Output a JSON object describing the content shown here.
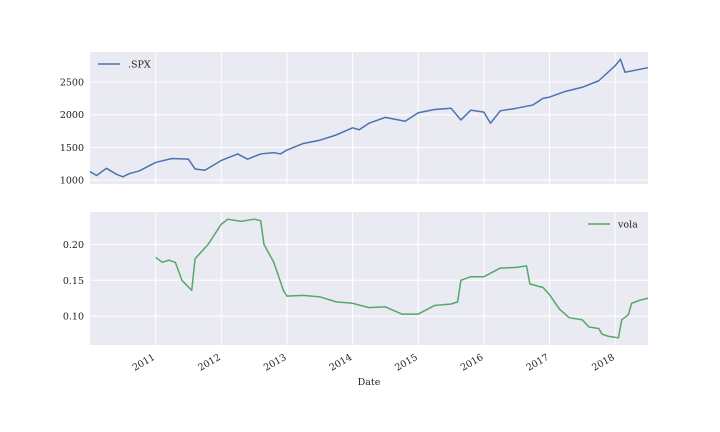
{
  "chart_data": [
    {
      "type": "line",
      "xlim": [
        2010.0,
        2018.5
      ],
      "xticks": [
        2011,
        2012,
        2013,
        2014,
        2015,
        2016,
        2017,
        2018
      ],
      "ylim": [
        940,
        2960
      ],
      "yticks": [
        1000,
        1500,
        2000,
        2500
      ],
      "grid": true,
      "legend": "upper left",
      "series": [
        {
          "name": ".SPX",
          "color": "#4c72b0",
          "x": [
            2010.0,
            2010.1,
            2010.25,
            2010.4,
            2010.5,
            2010.6,
            2010.75,
            2011.0,
            2011.25,
            2011.5,
            2011.6,
            2011.75,
            2012.0,
            2012.25,
            2012.4,
            2012.6,
            2012.8,
            2012.9,
            2013.0,
            2013.25,
            2013.5,
            2013.75,
            2014.0,
            2014.1,
            2014.25,
            2014.5,
            2014.8,
            2015.0,
            2015.25,
            2015.5,
            2015.65,
            2015.8,
            2016.0,
            2016.1,
            2016.25,
            2016.5,
            2016.75,
            2016.9,
            2017.0,
            2017.25,
            2017.5,
            2017.75,
            2018.0,
            2018.08,
            2018.15,
            2018.3,
            2018.5
          ],
          "values": [
            1130,
            1070,
            1180,
            1090,
            1050,
            1100,
            1140,
            1270,
            1330,
            1320,
            1170,
            1150,
            1300,
            1400,
            1320,
            1400,
            1420,
            1400,
            1460,
            1560,
            1610,
            1690,
            1800,
            1770,
            1870,
            1960,
            1900,
            2030,
            2080,
            2100,
            1920,
            2070,
            2040,
            1870,
            2060,
            2100,
            2150,
            2250,
            2270,
            2360,
            2420,
            2520,
            2750,
            2850,
            2650,
            2680,
            2720
          ]
        }
      ]
    },
    {
      "type": "line",
      "xlabel": "Date",
      "xlim": [
        2010.0,
        2018.5
      ],
      "xticks": [
        2011,
        2012,
        2013,
        2014,
        2015,
        2016,
        2017,
        2018
      ],
      "ylim": [
        0.06,
        0.245
      ],
      "yticks": [
        {
          "value": 0.1,
          "label": "0.10"
        },
        {
          "value": 0.15,
          "label": "0.15"
        },
        {
          "value": 0.2,
          "label": "0.20"
        }
      ],
      "grid": true,
      "legend": "upper right",
      "series": [
        {
          "name": "vola",
          "color": "#55a868",
          "x": [
            2011.0,
            2011.1,
            2011.2,
            2011.3,
            2011.4,
            2011.55,
            2011.6,
            2011.8,
            2012.0,
            2012.1,
            2012.3,
            2012.5,
            2012.6,
            2012.65,
            2012.8,
            2012.95,
            2013.0,
            2013.25,
            2013.5,
            2013.75,
            2014.0,
            2014.25,
            2014.5,
            2014.75,
            2015.0,
            2015.25,
            2015.5,
            2015.6,
            2015.65,
            2015.8,
            2016.0,
            2016.25,
            2016.5,
            2016.65,
            2016.7,
            2016.9,
            2017.0,
            2017.15,
            2017.3,
            2017.5,
            2017.6,
            2017.75,
            2017.8,
            2017.9,
            2018.05,
            2018.1,
            2018.2,
            2018.25,
            2018.4,
            2018.5
          ],
          "values": [
            0.182,
            0.175,
            0.178,
            0.175,
            0.15,
            0.136,
            0.18,
            0.2,
            0.228,
            0.235,
            0.232,
            0.235,
            0.233,
            0.2,
            0.175,
            0.135,
            0.128,
            0.129,
            0.127,
            0.12,
            0.118,
            0.112,
            0.113,
            0.103,
            0.103,
            0.115,
            0.117,
            0.12,
            0.15,
            0.155,
            0.155,
            0.167,
            0.168,
            0.17,
            0.145,
            0.14,
            0.13,
            0.11,
            0.098,
            0.095,
            0.085,
            0.083,
            0.075,
            0.072,
            0.07,
            0.095,
            0.102,
            0.118,
            0.123,
            0.125
          ]
        }
      ]
    }
  ]
}
